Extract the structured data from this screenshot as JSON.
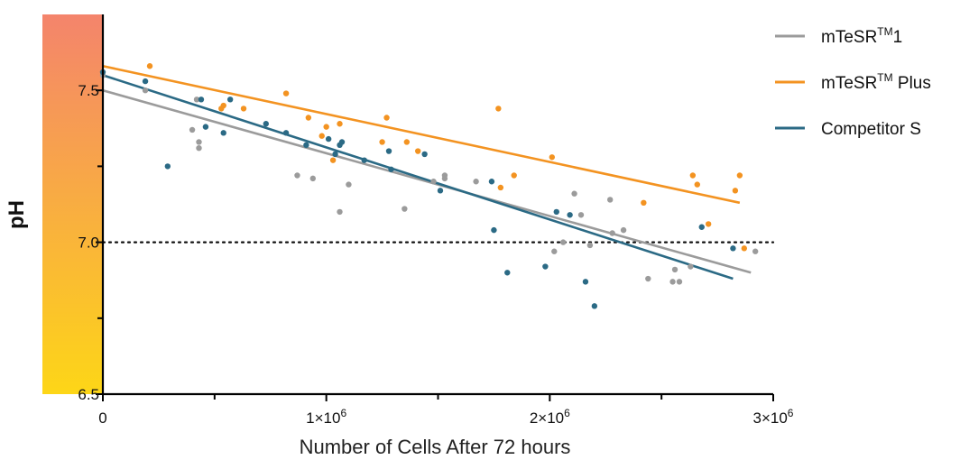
{
  "chart_data": {
    "type": "scatter",
    "xlabel": "Number of Cells After 72 hours",
    "ylabel": "pH",
    "xlim": [
      0,
      3000000
    ],
    "ylim": [
      6.5,
      7.75
    ],
    "x_ticks": [
      {
        "value": 0,
        "label": "0"
      },
      {
        "value": 1000000,
        "label": "1×10",
        "exp": "6"
      },
      {
        "value": 2000000,
        "label": "2×10",
        "exp": "6"
      },
      {
        "value": 3000000,
        "label": "3×10",
        "exp": "6"
      }
    ],
    "y_ticks": [
      {
        "value": 6.5,
        "label": "6.5"
      },
      {
        "value": 7.0,
        "label": "7.0"
      },
      {
        "value": 7.5,
        "label": "7.5"
      }
    ],
    "reference_line": {
      "y": 7.0,
      "style": "dotted"
    },
    "legend": {
      "position": "top-right"
    },
    "gradient_bar": {
      "top_color": "#f4846c",
      "bottom_color": "#fdd617"
    },
    "series": [
      {
        "name": "mTeSR",
        "name_sup": "TM",
        "name_suffix": "1",
        "color": "#9b9b9b",
        "trend": [
          [
            0,
            7.5
          ],
          [
            2900000,
            6.9
          ]
        ],
        "points": [
          [
            0,
            7.55
          ],
          [
            190000,
            7.5
          ],
          [
            400000,
            7.37
          ],
          [
            420000,
            7.47
          ],
          [
            430000,
            7.33
          ],
          [
            430000,
            7.31
          ],
          [
            870000,
            7.22
          ],
          [
            940000,
            7.21
          ],
          [
            1060000,
            7.1
          ],
          [
            1100000,
            7.19
          ],
          [
            1350000,
            7.11
          ],
          [
            1480000,
            7.2
          ],
          [
            1530000,
            7.22
          ],
          [
            1530000,
            7.21
          ],
          [
            1670000,
            7.2
          ],
          [
            2020000,
            6.97
          ],
          [
            2060000,
            7.0
          ],
          [
            2110000,
            7.16
          ],
          [
            2140000,
            7.09
          ],
          [
            2180000,
            6.99
          ],
          [
            2270000,
            7.14
          ],
          [
            2280000,
            7.03
          ],
          [
            2330000,
            7.04
          ],
          [
            2440000,
            6.88
          ],
          [
            2550000,
            6.87
          ],
          [
            2560000,
            6.91
          ],
          [
            2580000,
            6.87
          ],
          [
            2630000,
            6.92
          ],
          [
            2920000,
            6.97
          ]
        ]
      },
      {
        "name": "mTeSR",
        "name_sup": "TM",
        "name_suffix": " Plus",
        "color": "#f39321",
        "trend": [
          [
            0,
            7.58
          ],
          [
            2850000,
            7.13
          ]
        ],
        "points": [
          [
            210000,
            7.58
          ],
          [
            530000,
            7.44
          ],
          [
            540000,
            7.45
          ],
          [
            630000,
            7.44
          ],
          [
            820000,
            7.49
          ],
          [
            920000,
            7.41
          ],
          [
            980000,
            7.35
          ],
          [
            1000000,
            7.38
          ],
          [
            1030000,
            7.27
          ],
          [
            1060000,
            7.39
          ],
          [
            1250000,
            7.33
          ],
          [
            1270000,
            7.41
          ],
          [
            1360000,
            7.33
          ],
          [
            1410000,
            7.3
          ],
          [
            1770000,
            7.44
          ],
          [
            1780000,
            7.18
          ],
          [
            1840000,
            7.22
          ],
          [
            2010000,
            7.28
          ],
          [
            2420000,
            7.13
          ],
          [
            2640000,
            7.22
          ],
          [
            2660000,
            7.19
          ],
          [
            2710000,
            7.06
          ],
          [
            2830000,
            7.17
          ],
          [
            2850000,
            7.22
          ],
          [
            2870000,
            6.98
          ]
        ]
      },
      {
        "name": "Competitor S",
        "name_sup": "",
        "name_suffix": "",
        "color": "#2b6a85",
        "trend": [
          [
            0,
            7.55
          ],
          [
            2820000,
            6.88
          ]
        ],
        "points": [
          [
            0,
            7.56
          ],
          [
            190000,
            7.53
          ],
          [
            290000,
            7.25
          ],
          [
            440000,
            7.47
          ],
          [
            460000,
            7.38
          ],
          [
            540000,
            7.36
          ],
          [
            570000,
            7.47
          ],
          [
            730000,
            7.39
          ],
          [
            820000,
            7.36
          ],
          [
            910000,
            7.32
          ],
          [
            1010000,
            7.34
          ],
          [
            1040000,
            7.29
          ],
          [
            1060000,
            7.32
          ],
          [
            1070000,
            7.33
          ],
          [
            1170000,
            7.27
          ],
          [
            1280000,
            7.3
          ],
          [
            1290000,
            7.24
          ],
          [
            1440000,
            7.29
          ],
          [
            1510000,
            7.17
          ],
          [
            1740000,
            7.2
          ],
          [
            1750000,
            7.04
          ],
          [
            1810000,
            6.9
          ],
          [
            1980000,
            6.92
          ],
          [
            2030000,
            7.1
          ],
          [
            2090000,
            7.09
          ],
          [
            2160000,
            6.87
          ],
          [
            2200000,
            6.79
          ],
          [
            2680000,
            7.05
          ],
          [
            2820000,
            6.98
          ]
        ]
      }
    ]
  }
}
